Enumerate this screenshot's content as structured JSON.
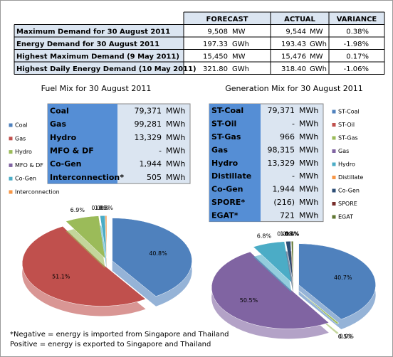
{
  "demand_table": {
    "header": [
      "FORECAST",
      "ACTUAL",
      "VARIANCE"
    ],
    "rows": [
      [
        "Maximum Demand for 30 August 2011",
        "9,508",
        "MW",
        "9,544",
        "MW",
        "0.38%"
      ],
      [
        "Energy Demand for 30 August 2011",
        "197.33",
        "GWh",
        "193.43",
        "GWh",
        "-1.98%"
      ],
      [
        "Highest Maximum Demand (9 May 2011)",
        "15,450",
        "MW",
        "15,476",
        "MW",
        "0.17%"
      ],
      [
        "Highest Daily Energy Demand (10 May 2011)",
        "321.80",
        "GWh",
        "318.40",
        "GWh",
        "-1.06%"
      ]
    ]
  },
  "fuel_table": {
    "rows": [
      [
        "Coal",
        "79,371",
        "MWh"
      ],
      [
        "Gas",
        "99,281",
        "MWh"
      ],
      [
        "Hydro",
        "13,329",
        "MWh"
      ],
      [
        "MFO & DF",
        "-",
        "MWh"
      ],
      [
        "Co-Gen",
        "1,944",
        "MWh"
      ],
      [
        "Interconnection*",
        "505",
        "MWh"
      ]
    ]
  },
  "generation_table": {
    "rows": [
      [
        "ST-Coal",
        "79,371",
        "MWh"
      ],
      [
        "ST-Oil",
        "-",
        "MWh"
      ],
      [
        "ST-Gas",
        "966",
        "MWh"
      ],
      [
        "Gas",
        "98,315",
        "MWh"
      ],
      [
        "Hydro",
        "13,329",
        "MWh"
      ],
      [
        "Distillate",
        "-",
        "MWh"
      ],
      [
        "Co-Gen",
        "1,944",
        "MWh"
      ],
      [
        "SPORE*",
        "(216)",
        "MWh"
      ],
      [
        "EGAT*",
        "721",
        "MWh"
      ]
    ]
  },
  "chart_data": [
    {
      "type": "pie",
      "title": "Fuel Mix for 30 August 2011",
      "categories": [
        "Coal",
        "Gas",
        "Hydro",
        "MFO & DF",
        "Co-Gen",
        "Interconnection"
      ],
      "values": [
        40.8,
        51.1,
        6.9,
        0.0,
        1.0,
        0.3
      ],
      "value_labels": [
        "40.8%",
        "51.1%",
        "6.9%",
        "0.0%",
        "1.0%",
        "0.3%"
      ],
      "colors": [
        "#4f81bd",
        "#c0504d",
        "#9bbb59",
        "#8064a2",
        "#4bacc6",
        "#f79646"
      ]
    },
    {
      "type": "pie",
      "title": "Generation Mix for 30 August 2011",
      "categories": [
        "ST-Coal",
        "ST-Oil",
        "ST-Gas",
        "Gas",
        "Hydro",
        "Distillate",
        "Co-Gen",
        "SPORE",
        "EGAT"
      ],
      "values": [
        40.7,
        0.0,
        0.5,
        50.5,
        6.8,
        0.0,
        1.0,
        -0.1,
        0.4
      ],
      "value_labels": [
        "40.7%",
        "0.0%",
        "0.5%",
        "50.5%",
        "6.8%",
        "0.0%",
        "1.0%",
        "-0.1%",
        "0.4%"
      ],
      "colors": [
        "#4f81bd",
        "#c0504d",
        "#9bbb59",
        "#8064a2",
        "#4bacc6",
        "#f79646",
        "#2c4d75",
        "#772c2a",
        "#5f7530"
      ]
    }
  ],
  "notes": [
    "*Negative = energy is imported from Singapore and Thailand",
    "Positive = energy is exported to Singapore and Thailand"
  ]
}
